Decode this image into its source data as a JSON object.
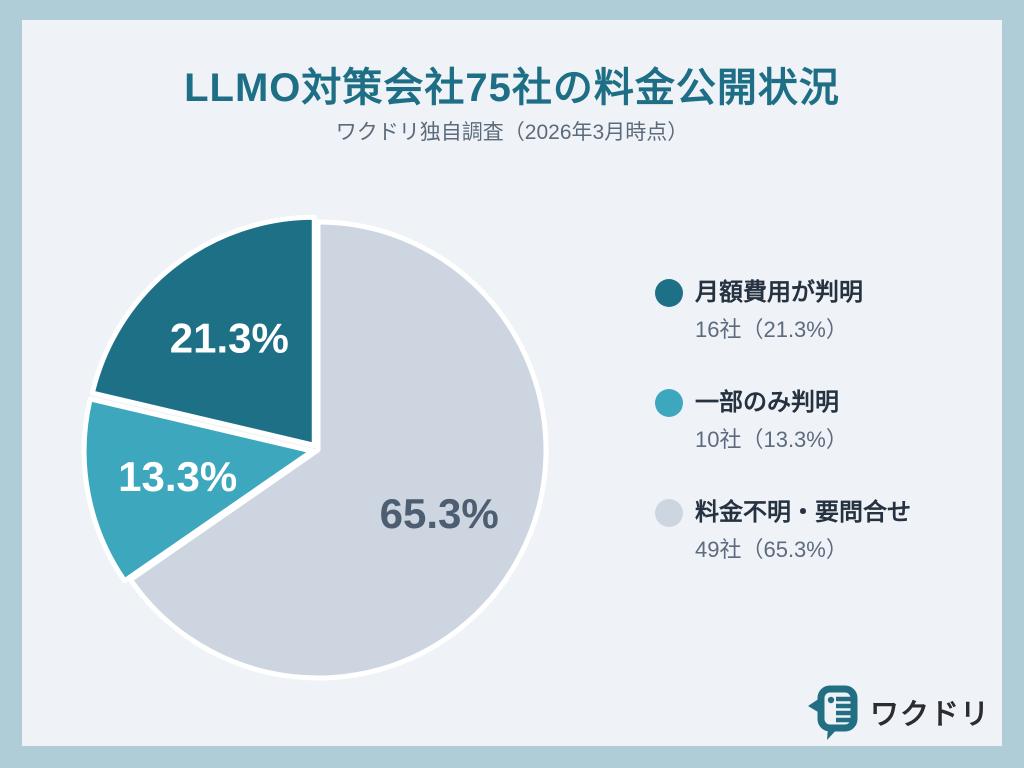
{
  "page": {
    "outer_background": "#aecdd6",
    "card_background": "#eff3f8"
  },
  "header": {
    "title": "LLMO対策会社75社の料金公開状況",
    "subtitle": "ワクドリ独自調査（2026年3月時点）",
    "title_color": "#1e6f85"
  },
  "chart_data": {
    "type": "pie",
    "title": "LLMO対策会社75社の料金公開状況",
    "subtitle": "ワクドリ独自調査（2026年3月時点）",
    "total_companies": 75,
    "start_angle_deg": 0,
    "direction": "clockwise",
    "stroke_color": "#ffffff",
    "slices": [
      {
        "label": "料金不明・要問合せ",
        "count": 49,
        "percent": 65.3,
        "display": "65.3%",
        "color": "#ccd5e0",
        "label_color": "#4d5d72",
        "offset": 0
      },
      {
        "label": "一部のみ判明",
        "count": 10,
        "percent": 13.3,
        "display": "13.3%",
        "color": "#3da7bd",
        "label_color": "#ffffff",
        "offset": 6
      },
      {
        "label": "月額費用が判明",
        "count": 16,
        "percent": 21.3,
        "display": "21.3%",
        "color": "#1d7086",
        "label_color": "#ffffff",
        "offset": 6
      }
    ]
  },
  "legend": {
    "items": [
      {
        "label": "月額費用が判明",
        "detail": "16社（21.3%）",
        "color": "#1d7086"
      },
      {
        "label": "一部のみ判明",
        "detail": "10社（13.3%）",
        "color": "#3da7bd"
      },
      {
        "label": "料金不明・要問合せ",
        "detail": "49社（65.3%）",
        "color": "#ccd5e0"
      }
    ]
  },
  "logo": {
    "text": "ワクドリ",
    "icon": "bird-speech-bubble-icon",
    "icon_color": "#226e83"
  }
}
